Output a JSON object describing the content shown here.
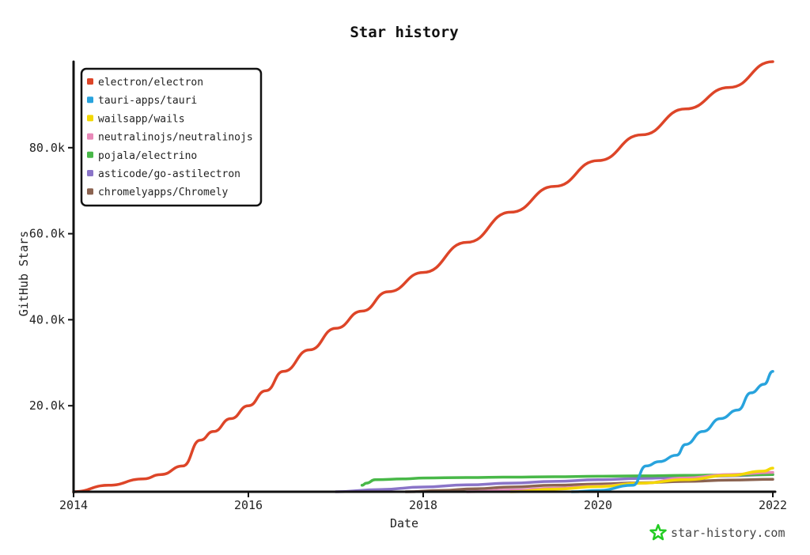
{
  "chart_data": {
    "type": "line",
    "title": "Star history",
    "xlabel": "Date",
    "ylabel": "GitHub Stars",
    "x_tick_labels": [
      "2014",
      "2016",
      "2018",
      "2020",
      "2022"
    ],
    "x_tick_values": [
      2014,
      2016,
      2018,
      2020,
      2022
    ],
    "y_tick_labels": [
      "20.0k",
      "40.0k",
      "60.0k",
      "80.0k"
    ],
    "y_tick_values": [
      20000,
      40000,
      60000,
      80000
    ],
    "xlim": [
      2014,
      2022
    ],
    "ylim": [
      0,
      100000
    ],
    "grid": false,
    "legend_position": "top-left",
    "series": [
      {
        "name": "electron/electron",
        "color": "#dd4528",
        "x": [
          2014.0,
          2014.4,
          2014.8,
          2015.0,
          2015.25,
          2015.45,
          2015.6,
          2015.8,
          2016.0,
          2016.2,
          2016.4,
          2016.7,
          2017.0,
          2017.3,
          2017.6,
          2018.0,
          2018.5,
          2019.0,
          2019.5,
          2020.0,
          2020.5,
          2021.0,
          2021.5,
          2022.0
        ],
        "y": [
          0,
          1500,
          3000,
          4000,
          6000,
          12000,
          14000,
          17000,
          20000,
          23500,
          28000,
          33000,
          38000,
          42000,
          46500,
          51000,
          58000,
          65000,
          71000,
          77000,
          83000,
          89000,
          94000,
          100000
        ]
      },
      {
        "name": "tauri-apps/tauri",
        "color": "#28a3dd",
        "x": [
          2019.7,
          2020.0,
          2020.4,
          2020.55,
          2020.7,
          2020.9,
          2021.0,
          2021.2,
          2021.4,
          2021.6,
          2021.75,
          2021.9,
          2022.0
        ],
        "y": [
          0,
          300,
          1500,
          6000,
          7000,
          8500,
          11000,
          14000,
          17000,
          19000,
          23000,
          25000,
          28000
        ]
      },
      {
        "name": "wailsapp/wails",
        "color": "#f3d800",
        "x": [
          2019.0,
          2019.5,
          2020.0,
          2020.5,
          2021.0,
          2021.5,
          2021.9,
          2022.0
        ],
        "y": [
          0,
          600,
          1200,
          2000,
          2800,
          3800,
          4800,
          5500
        ]
      },
      {
        "name": "neutralinojs/neutralinojs",
        "color": "#e888b8",
        "x": [
          2018.5,
          2019.0,
          2019.5,
          2020.0,
          2020.5,
          2021.0,
          2021.5,
          2022.0
        ],
        "y": [
          0,
          400,
          800,
          1300,
          2000,
          3200,
          4000,
          4500
        ]
      },
      {
        "name": "pojala/electrino",
        "color": "#48b848",
        "x": [
          2017.3,
          2017.35,
          2017.45,
          2017.8,
          2018.0,
          2018.5,
          2019.0,
          2019.5,
          2020.0,
          2020.5,
          2021.0,
          2021.5,
          2022.0
        ],
        "y": [
          1500,
          2000,
          2800,
          3000,
          3200,
          3300,
          3400,
          3500,
          3600,
          3700,
          3800,
          3900,
          4000
        ]
      },
      {
        "name": "asticode/go-astilectron",
        "color": "#8a74c8",
        "x": [
          2017.0,
          2017.5,
          2018.0,
          2018.5,
          2019.0,
          2019.5,
          2020.0,
          2020.5,
          2021.0,
          2021.5,
          2022.0
        ],
        "y": [
          0,
          500,
          1100,
          1600,
          2000,
          2400,
          2800,
          3100,
          3400,
          3700,
          4000
        ]
      },
      {
        "name": "chromelyapps/Chromely",
        "color": "#8b6350",
        "x": [
          2017.8,
          2018.2,
          2018.6,
          2019.0,
          2019.5,
          2020.0,
          2020.5,
          2021.0,
          2021.5,
          2022.0
        ],
        "y": [
          0,
          300,
          700,
          1100,
          1500,
          1800,
          2100,
          2400,
          2700,
          2900
        ]
      }
    ]
  },
  "watermark": {
    "text": "star-history.com",
    "icon": "star-icon",
    "icon_color": "#22cc22"
  }
}
